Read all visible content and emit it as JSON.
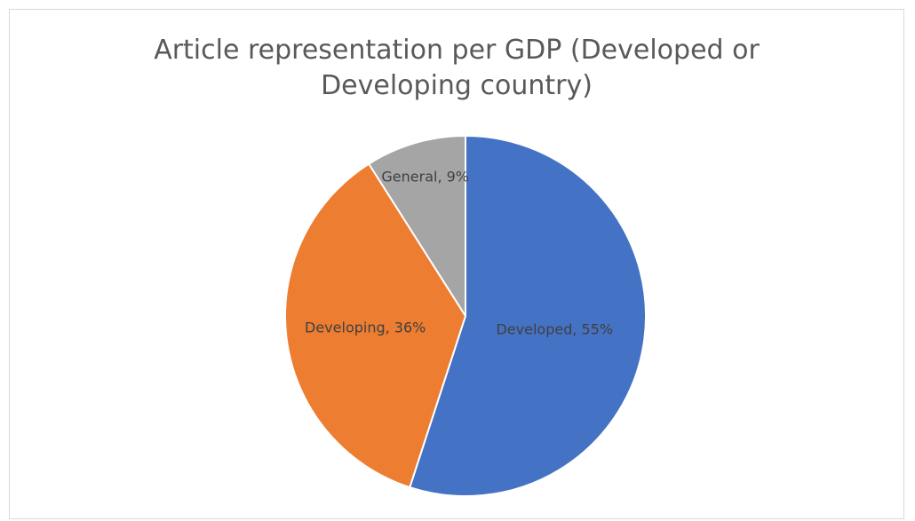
{
  "chart_data": {
    "type": "pie",
    "title_lines": [
      "Article representation per GDP (Developed or",
      "Developing country)"
    ],
    "categories": [
      "Developed",
      "Developing",
      "General"
    ],
    "values": [
      55,
      36,
      9
    ],
    "labels": [
      "Developed, 55%",
      "Developing, 36%",
      "General, 9%"
    ],
    "colors": [
      "#4472c4",
      "#ed7d31",
      "#a5a5a5"
    ],
    "start_angle_deg": 0,
    "direction": "clockwise",
    "legend": "none"
  }
}
